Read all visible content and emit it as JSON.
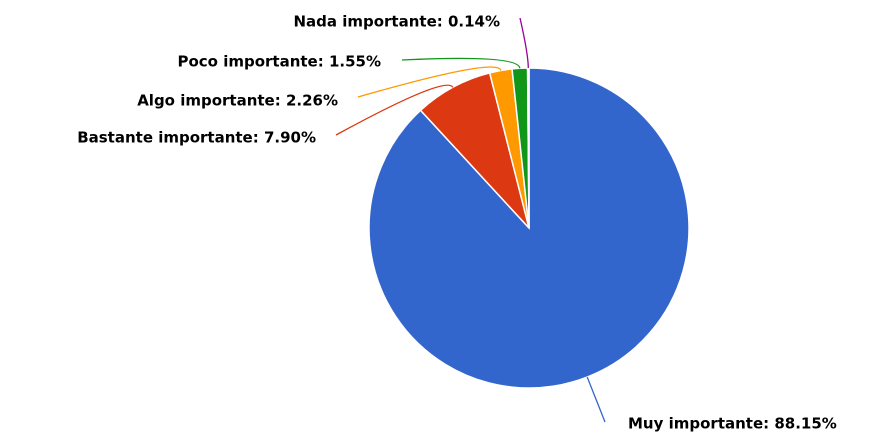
{
  "chart_data": {
    "type": "pie",
    "labels": [
      "Muy importante: 88.15%",
      "Bastante importante: 7.90%",
      "Algo importante: 2.26%",
      "Poco importante: 1.55%",
      "Nada importante: 0.14%"
    ],
    "values": [
      88.15,
      7.9,
      2.26,
      1.55,
      0.14
    ],
    "colors": [
      "#3366cc",
      "#dc3912",
      "#ff9900",
      "#109618",
      "#990099"
    ]
  }
}
